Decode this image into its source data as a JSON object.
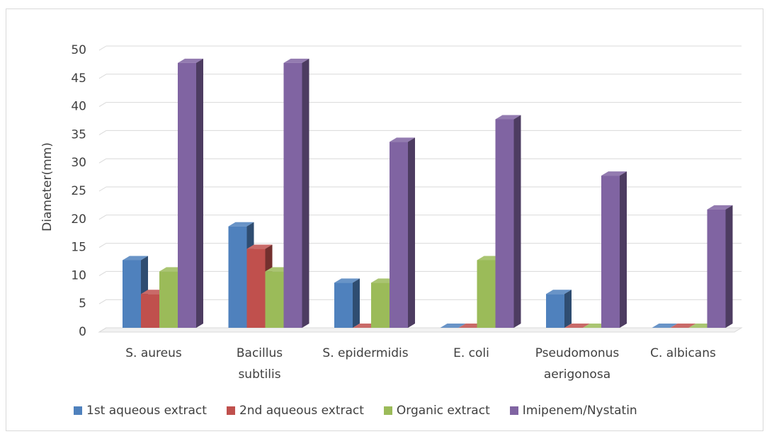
{
  "chart_data": {
    "type": "bar",
    "ylabel": "Diameter(mm)",
    "ylim": [
      0,
      50
    ],
    "yticks": [
      0,
      5,
      10,
      15,
      20,
      25,
      30,
      35,
      40,
      45,
      50
    ],
    "grid": true,
    "legend_position": "bottom",
    "categories": [
      [
        "S. aureus"
      ],
      [
        "Bacillus",
        "subtilis"
      ],
      [
        "S. epidermidis"
      ],
      [
        "E. coli"
      ],
      [
        "Pseudomonus",
        "aerigonosa"
      ],
      [
        "C. albicans"
      ]
    ],
    "series": [
      {
        "name": "1st aqueous extract",
        "color": "#4f81bd",
        "values": [
          12,
          18,
          8,
          0,
          6,
          0
        ]
      },
      {
        "name": "2nd aqueous extract",
        "color": "#c0504d",
        "values": [
          6,
          14,
          0,
          0,
          0,
          0
        ]
      },
      {
        "name": "Organic extract",
        "color": "#9bbb59",
        "values": [
          10,
          10,
          8,
          12,
          0,
          0
        ]
      },
      {
        "name": "Imipenem/Nystatin",
        "color": "#8064a2",
        "values": [
          47,
          47,
          33,
          37,
          27,
          21
        ]
      }
    ]
  }
}
